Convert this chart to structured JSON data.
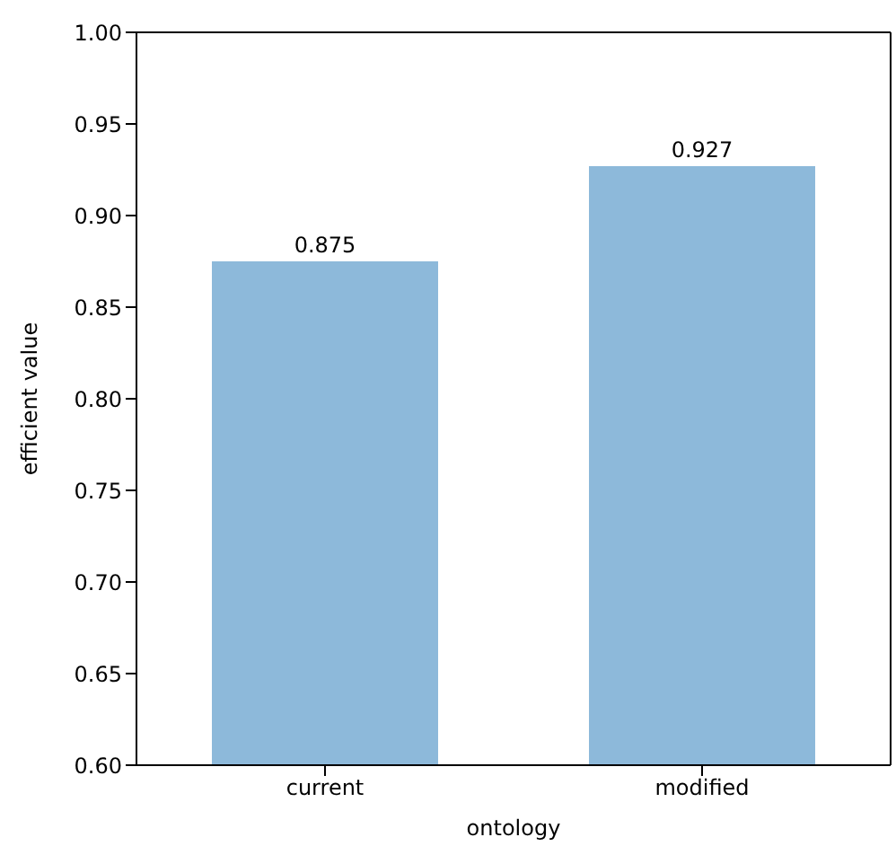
{
  "chart_data": {
    "type": "bar",
    "xlabel": "ontology",
    "ylabel": "efficient value",
    "categories": [
      "current",
      "modified"
    ],
    "values": [
      0.875,
      0.927
    ],
    "color": "#8db9da",
    "ylim": [
      0.6,
      1.0
    ],
    "yticks": [
      {
        "value": 0.6,
        "label": "0.60"
      },
      {
        "value": 0.65,
        "label": "0.65"
      },
      {
        "value": 0.7,
        "label": "0.70"
      },
      {
        "value": 0.75,
        "label": "0.75"
      },
      {
        "value": 0.8,
        "label": "0.80"
      },
      {
        "value": 0.85,
        "label": "0.85"
      },
      {
        "value": 0.9,
        "label": "0.90"
      },
      {
        "value": 0.95,
        "label": "0.95"
      },
      {
        "value": 1.0,
        "label": "1.00"
      }
    ],
    "data_labels": true,
    "grid": false
  }
}
